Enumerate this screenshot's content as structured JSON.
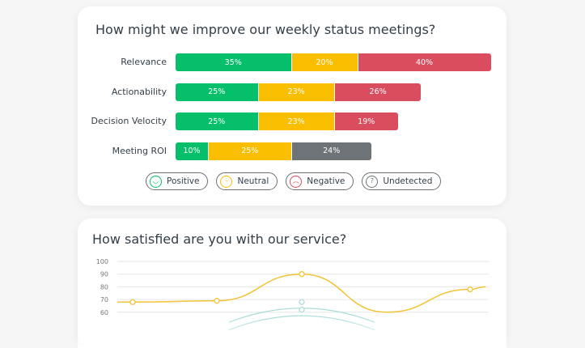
{
  "chart_data": [
    {
      "type": "bar",
      "stacked": true,
      "orientation": "horizontal",
      "title": "How might we improve our weekly status meetings?",
      "categories": [
        "Relevance",
        "Actionability",
        "Decision Velocity",
        "Meeting ROI"
      ],
      "rows": [
        {
          "category": "Relevance",
          "segments": [
            {
              "series": "Positive",
              "value": 35
            },
            {
              "series": "Neutral",
              "value": 20
            },
            {
              "series": "Negative",
              "value": 40
            }
          ]
        },
        {
          "category": "Actionability",
          "segments": [
            {
              "series": "Positive",
              "value": 25
            },
            {
              "series": "Neutral",
              "value": 23
            },
            {
              "series": "Negative",
              "value": 26
            }
          ]
        },
        {
          "category": "Decision Velocity",
          "segments": [
            {
              "series": "Positive",
              "value": 25
            },
            {
              "series": "Neutral",
              "value": 23
            },
            {
              "series": "Negative",
              "value": 19
            }
          ]
        },
        {
          "category": "Meeting ROI",
          "segments": [
            {
              "series": "Positive",
              "value": 10
            },
            {
              "series": "Neutral",
              "value": 25
            },
            {
              "series": "Undetected",
              "value": 24
            }
          ]
        }
      ],
      "legend": [
        {
          "name": "Positive",
          "color": "#05bf6b",
          "icon": "smile-icon"
        },
        {
          "name": "Neutral",
          "color": "#f9be00",
          "icon": "neutral-face-icon"
        },
        {
          "name": "Negative",
          "color": "#d94d5e",
          "icon": "frown-icon"
        },
        {
          "name": "Undetected",
          "color": "#6e7377",
          "icon": "question-icon"
        }
      ],
      "legend_position": "bottom"
    },
    {
      "type": "line",
      "title": "How satisfied are you with our service?",
      "yticks": [
        100,
        90,
        80,
        70,
        60
      ],
      "ylim": [
        60,
        100
      ],
      "grid": true,
      "series": [
        {
          "color": "#f2c335",
          "values": [
            68,
            69,
            90,
            60,
            78,
            80
          ]
        },
        {
          "color": "#a9dcd8",
          "values": [
            null,
            null,
            68,
            null,
            null,
            null
          ]
        },
        {
          "color": "#a9dcd8",
          "values": [
            null,
            null,
            62,
            null,
            null,
            null
          ]
        }
      ]
    }
  ]
}
